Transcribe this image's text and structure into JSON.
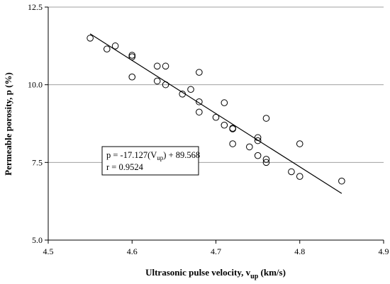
{
  "chart_data": {
    "type": "scatter",
    "xlabel_main": "Ultrasonic pulse velocity, v",
    "xlabel_sub": "up",
    "xlabel_unit": " (km/s)",
    "ylabel": "Permeable porosity, p (%)",
    "xlim": [
      4.5,
      4.9
    ],
    "ylim": [
      5.0,
      12.5
    ],
    "x_ticks": [
      "4.5",
      "4.6",
      "4.7",
      "4.8",
      "4.9"
    ],
    "y_ticks": [
      "5.0",
      "7.5",
      "10.0",
      "12.5"
    ],
    "y_grid": [
      7.5,
      10.0,
      12.5
    ],
    "points": [
      [
        4.55,
        11.5
      ],
      [
        4.57,
        11.15
      ],
      [
        4.58,
        11.25
      ],
      [
        4.6,
        10.95
      ],
      [
        4.6,
        10.9
      ],
      [
        4.6,
        10.25
      ],
      [
        4.63,
        10.6
      ],
      [
        4.63,
        10.12
      ],
      [
        4.64,
        10.6
      ],
      [
        4.64,
        10.0
      ],
      [
        4.66,
        9.7
      ],
      [
        4.67,
        9.85
      ],
      [
        4.68,
        10.4
      ],
      [
        4.68,
        9.45
      ],
      [
        4.68,
        9.12
      ],
      [
        4.7,
        8.95
      ],
      [
        4.71,
        9.42
      ],
      [
        4.71,
        8.7
      ],
      [
        4.72,
        8.6
      ],
      [
        4.72,
        8.58
      ],
      [
        4.72,
        8.1
      ],
      [
        4.74,
        8.0
      ],
      [
        4.75,
        8.3
      ],
      [
        4.75,
        8.2
      ],
      [
        4.75,
        7.72
      ],
      [
        4.76,
        8.92
      ],
      [
        4.76,
        7.6
      ],
      [
        4.76,
        7.5
      ],
      [
        4.79,
        7.2
      ],
      [
        4.8,
        8.1
      ],
      [
        4.8,
        7.05
      ],
      [
        4.85,
        6.9
      ]
    ],
    "fit_line": {
      "slope": -17.127,
      "intercept": 89.568,
      "x_range": [
        4.55,
        4.85
      ]
    },
    "annotation": {
      "line1_prefix": "p = -17.127(V",
      "line1_sub": "up",
      "line1_suffix": ") + 89.568",
      "line2": "r = 0.9524"
    }
  }
}
